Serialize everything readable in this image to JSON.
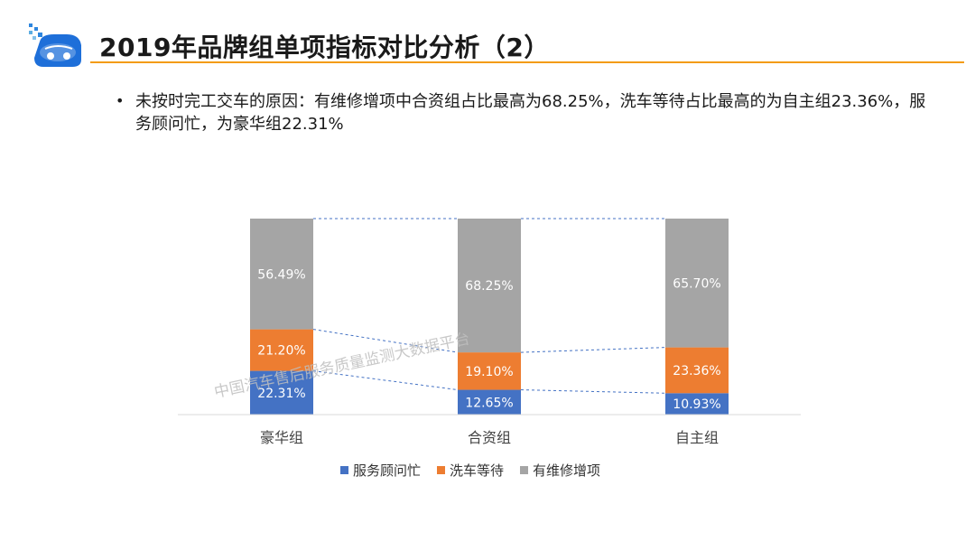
{
  "header": {
    "title": "2019年品牌组单项指标对比分析（2）"
  },
  "bullet": {
    "text": "未按时完工交车的原因：有维修增项中合资组占比最高为68.25%，洗车等待占比最高的为自主组23.36%，服务顾问忙，为豪华组22.31%"
  },
  "watermark": {
    "text": "中国汽车售后服务质量监测大数据平台"
  },
  "colors": {
    "accent_line": "#f39c12",
    "series": [
      "#4472c4",
      "#ed7d31",
      "#a5a5a5"
    ]
  },
  "chart_data": {
    "type": "bar",
    "stacked": true,
    "percent_stacked": true,
    "categories": [
      "豪华组",
      "合资组",
      "自主组"
    ],
    "series": [
      {
        "name": "服务顾问忙",
        "values": [
          22.31,
          12.65,
          10.93
        ],
        "labels": [
          "22.31%",
          "12.65%",
          "10.93%"
        ],
        "color": "#4472c4"
      },
      {
        "name": "洗车等待",
        "values": [
          21.2,
          19.1,
          23.36
        ],
        "labels": [
          "21.20%",
          "19.10%",
          "23.36%"
        ],
        "color": "#ed7d31"
      },
      {
        "name": "有维修增项",
        "values": [
          56.49,
          68.25,
          65.7
        ],
        "labels": [
          "56.49%",
          "68.25%",
          "65.70%"
        ],
        "color": "#a5a5a5"
      }
    ],
    "ylim": [
      0,
      100
    ],
    "series_lines": true,
    "legend_position": "bottom",
    "grid": false
  }
}
